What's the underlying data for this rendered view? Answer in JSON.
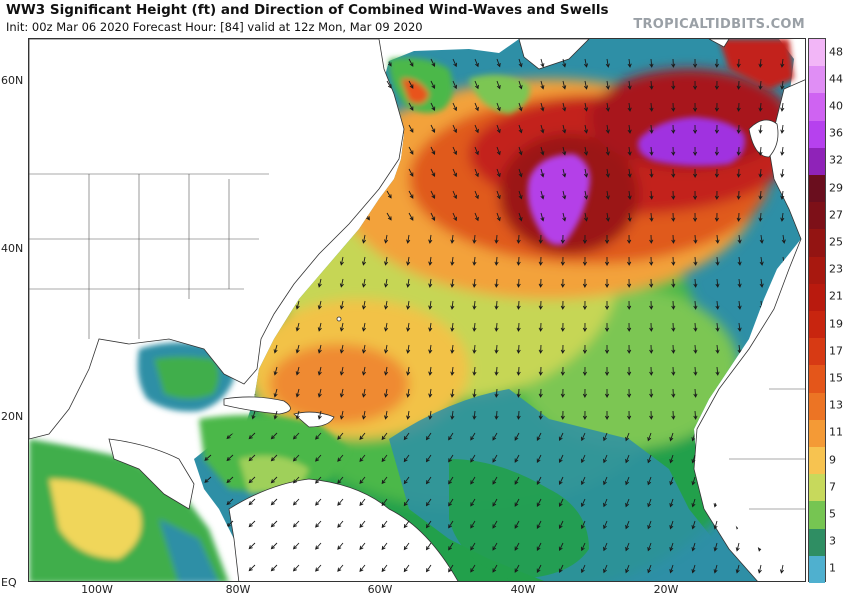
{
  "header": {
    "title": "WW3 Significant Height (ft) and Direction of Combined Wind-Waves and Swells",
    "subtitle": "Init: 00z Mar 06 2020   Forecast Hour: [84]   valid at 12z Mon, Mar 09 2020",
    "brand": "TROPICALTIDBITS.COM"
  },
  "map": {
    "lat_labels": [
      "60N",
      "40N",
      "20N",
      "EQ"
    ],
    "lon_labels": [
      "100W",
      "80W",
      "60W",
      "40W",
      "20W"
    ]
  },
  "colorbar": {
    "labels": [
      "48",
      "44",
      "40",
      "36",
      "32",
      "29",
      "27",
      "25",
      "23",
      "21",
      "19",
      "17",
      "15",
      "13",
      "11",
      "9",
      "7",
      "5",
      "3",
      "1"
    ],
    "colors": [
      "#f2b6f7",
      "#e08ef5",
      "#cf63f2",
      "#b641ee",
      "#8f23b8",
      "#6a0e1e",
      "#7d1018",
      "#931412",
      "#a8180f",
      "#b91a0e",
      "#c8250f",
      "#d73a14",
      "#e4561a",
      "#ec7424",
      "#f49a36",
      "#f7c350",
      "#c7d95c",
      "#76c552",
      "#2f8e63",
      "#4fb0cf"
    ]
  }
}
